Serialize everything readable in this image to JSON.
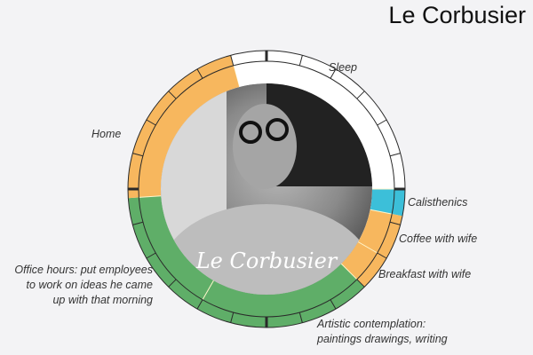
{
  "title": "Le Corbusier",
  "chart_data": {
    "type": "pie",
    "subtype": "24-hour clock donut",
    "clock_hours": 24,
    "start": "midnight at top, clockwise",
    "photo_signature": "Le Corbusier",
    "colors": {
      "sleep": "#ffffff",
      "home": "#f7b75e",
      "work": "#5fae68",
      "exercise": "#3cbfd9",
      "tick": "#2a2a2a"
    },
    "segments": [
      {
        "label": "Sleep",
        "start": 23,
        "end": 30,
        "color": "#ffffff"
      },
      {
        "label": "Calisthenics",
        "start": 6,
        "end": 6.75,
        "color": "#3cbfd9"
      },
      {
        "label": "Coffee with wife",
        "start": 6.75,
        "end": 8,
        "color": "#f7b75e"
      },
      {
        "label": "Breakfast with wife",
        "start": 8,
        "end": 9,
        "color": "#f7b75e"
      },
      {
        "label": "Artistic contemplation: paintings drawings, writing",
        "start": 9,
        "end": 14,
        "color": "#5fae68"
      },
      {
        "label": "Office hours: put employees to work on ideas he came up with that morning",
        "start": 14,
        "end": 17.75,
        "color": "#5fae68"
      },
      {
        "label": "Home",
        "start": 17.75,
        "end": 23,
        "color": "#f7b75e"
      }
    ],
    "labels": {
      "sleep": "Sleep",
      "home": "Home",
      "calisthenics": "Calisthenics",
      "coffee": "Coffee with wife",
      "breakfast": "Breakfast with wife",
      "office": [
        "Office hours: put employees",
        "to work on ideas he came",
        "up with that morning"
      ],
      "artistic": [
        "Artistic contemplation:",
        "paintings drawings, writing"
      ]
    }
  }
}
